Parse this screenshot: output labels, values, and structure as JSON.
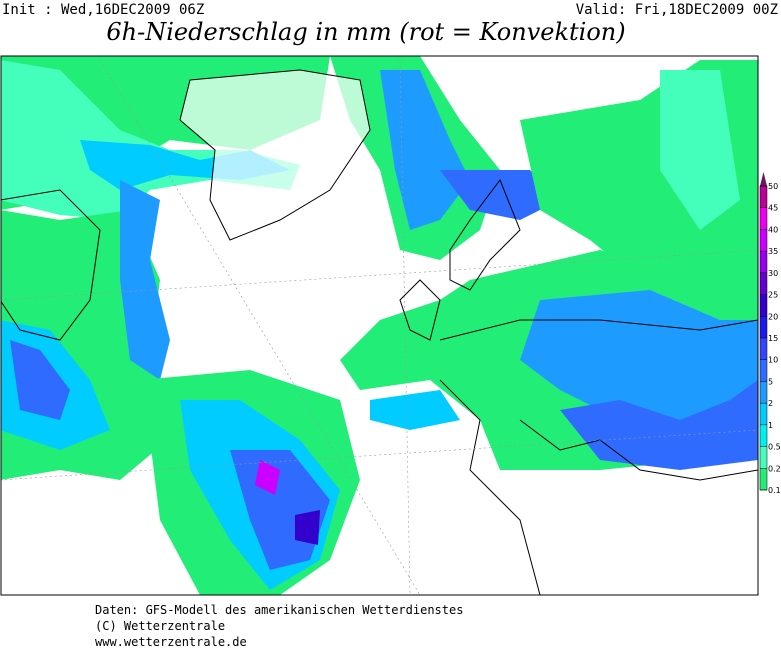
{
  "header": {
    "init": "Init : Wed,16DEC2009 06Z",
    "valid": "Valid: Fri,18DEC2009 00Z",
    "title": "6h-Niederschlag in mm (rot = Konvektion)"
  },
  "colorbar": {
    "levels": [
      0.1,
      0.2,
      0.5,
      1,
      2,
      5,
      10,
      15,
      20,
      25,
      30,
      35,
      40,
      45,
      50
    ],
    "colors": [
      "#22ee77",
      "#44ffbb",
      "#00f0f0",
      "#00ccff",
      "#1e9bff",
      "#2f6bff",
      "#3344ff",
      "#1a1aee",
      "#3300cc",
      "#6600cc",
      "#9900ee",
      "#cc00ff",
      "#ee00ee",
      "#bb0099",
      "#661a66"
    ]
  },
  "footer": {
    "line1": "Daten: GFS-Modell des amerikanischen Wetterdienstes",
    "line2": "(C) Wetterzentrale",
    "line3": "www.wetterzentrale.de"
  }
}
